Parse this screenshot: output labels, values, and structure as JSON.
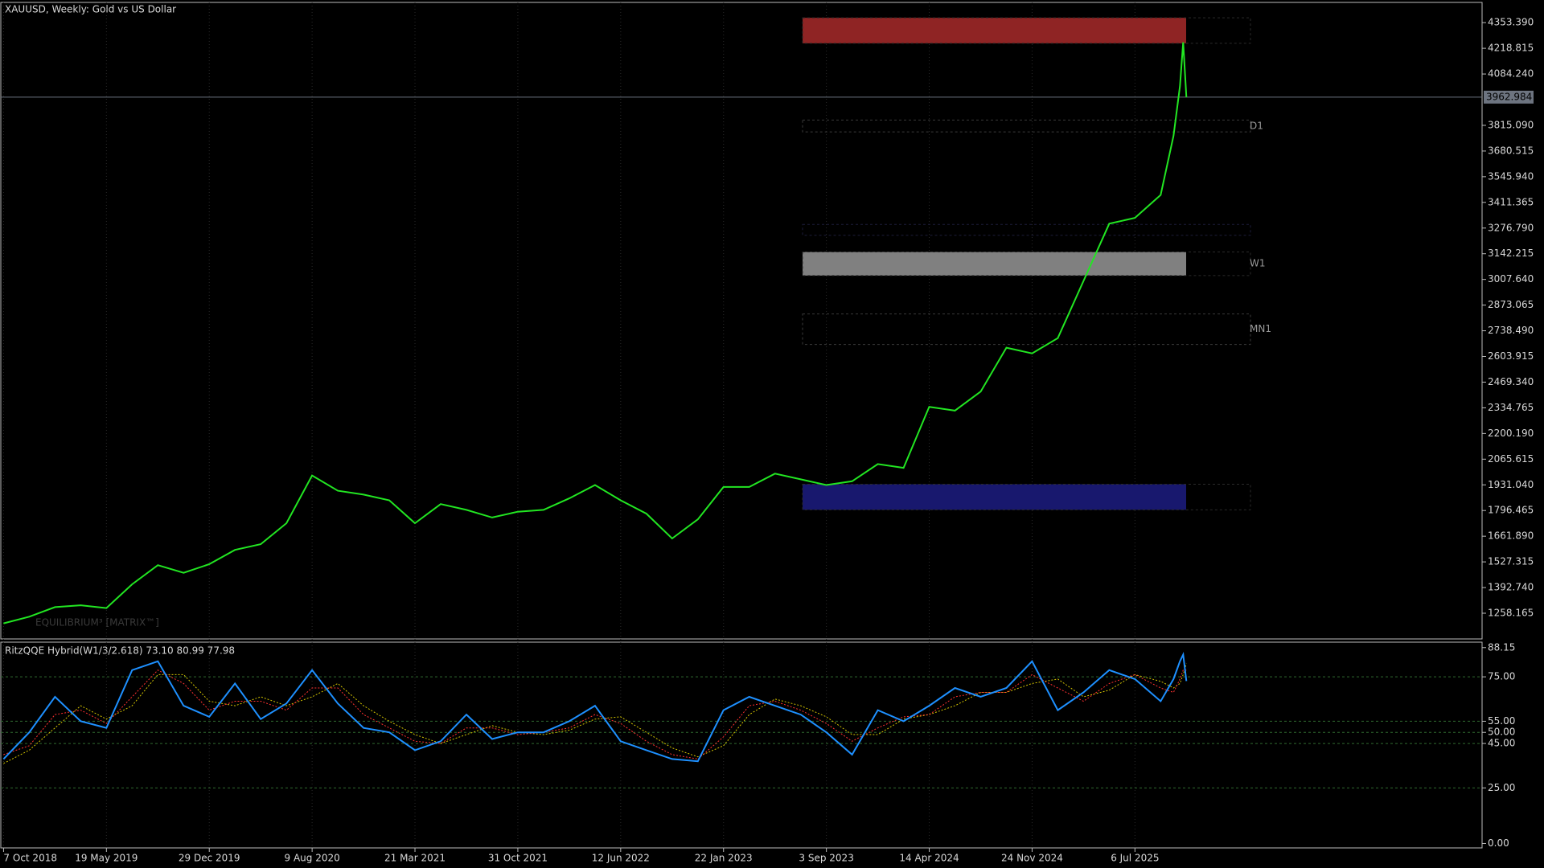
{
  "chart_data": [
    {
      "type": "line",
      "title": "XAUUSD, Weekly:  Gold vs US Dollar",
      "watermark": "EQUILIBRIUM³ [MATRIX™]",
      "x": [
        "2018-10-07",
        "2018-12-02",
        "2019-01-27",
        "2019-03-24",
        "2019-05-19",
        "2019-07-14",
        "2019-09-08",
        "2019-11-03",
        "2019-12-29",
        "2020-02-23",
        "2020-04-19",
        "2020-06-14",
        "2020-08-09",
        "2020-10-04",
        "2020-11-29",
        "2021-01-24",
        "2021-03-21",
        "2021-05-16",
        "2021-07-11",
        "2021-09-05",
        "2021-10-31",
        "2021-12-26",
        "2022-02-20",
        "2022-04-17",
        "2022-06-12",
        "2022-08-07",
        "2022-10-02",
        "2022-11-27",
        "2023-01-22",
        "2023-03-19",
        "2023-05-14",
        "2023-07-09",
        "2023-09-03",
        "2023-10-29",
        "2023-12-24",
        "2024-02-18",
        "2024-04-14",
        "2024-06-09",
        "2024-08-04",
        "2024-09-29",
        "2024-11-24",
        "2025-01-19",
        "2025-03-16",
        "2025-05-11",
        "2025-07-06",
        "2025-08-31",
        "2025-09-28",
        "2025-10-12",
        "2025-10-19",
        "2025-10-26"
      ],
      "values": [
        1205,
        1240,
        1290,
        1300,
        1285,
        1410,
        1510,
        1470,
        1515,
        1590,
        1620,
        1730,
        1980,
        1900,
        1880,
        1850,
        1730,
        1830,
        1800,
        1760,
        1790,
        1800,
        1860,
        1930,
        1850,
        1780,
        1650,
        1750,
        1920,
        1920,
        1990,
        1960,
        1930,
        1950,
        2040,
        2020,
        2340,
        2320,
        2420,
        2650,
        2620,
        2700,
        3000,
        3300,
        3330,
        3450,
        3760,
        4020,
        4250,
        3962.984
      ],
      "color": "#22e622",
      "current_price": 3962.984,
      "zones": [
        {
          "ylim": [
            4245,
            4379
          ],
          "color": "#8f2424",
          "fill": true
        },
        {
          "ylim": [
            3780.8,
            3842.7
          ],
          "color": "#3a3a3a",
          "fill": false,
          "label": "D1"
        },
        {
          "ylim": [
            3239,
            3296
          ],
          "color": "#1c1c3a",
          "fill": false
        },
        {
          "ylim": [
            3027.6,
            3151.6
          ],
          "color": "#808080",
          "fill": true,
          "label": "W1"
        },
        {
          "ylim": [
            2666.7,
            2826.6
          ],
          "color": "#3a3a3a",
          "fill": false,
          "label": "MN1"
        },
        {
          "ylim": [
            1800.2,
            1934.3
          ],
          "color": "#18186e",
          "fill": true
        }
      ],
      "xlim": [
        "2018-10-01",
        "2027-08-01"
      ],
      "xticks": [
        {
          "value": "2018-10-07",
          "label": "7 Oct 2018"
        },
        {
          "value": "2019-05-19",
          "label": "19 May 2019"
        },
        {
          "value": "2019-12-29",
          "label": "29 Dec 2019"
        },
        {
          "value": "2020-08-09",
          "label": "9 Aug 2020"
        },
        {
          "value": "2021-03-21",
          "label": "21 Mar 2021"
        },
        {
          "value": "2021-10-31",
          "label": "31 Oct 2021"
        },
        {
          "value": "2022-06-12",
          "label": "12 Jun 2022"
        },
        {
          "value": "2023-01-22",
          "label": "22 Jan 2023"
        },
        {
          "value": "2023-09-03",
          "label": "3 Sep 2023"
        },
        {
          "value": "2024-04-14",
          "label": "14 Apr 2024"
        },
        {
          "value": "2024-11-24",
          "label": "24 Nov 2024"
        },
        {
          "value": "2025-07-06",
          "label": "6 Jul 2025"
        }
      ],
      "ylim": [
        1123.4,
        4459.4
      ],
      "yticks": [
        {
          "value": 4353.39,
          "label": "4353.390"
        },
        {
          "value": 4218.815,
          "label": "4218.815"
        },
        {
          "value": 4084.24,
          "label": "4084.240"
        },
        {
          "value": 3815.09,
          "label": "3815.090"
        },
        {
          "value": 3680.515,
          "label": "3680.515"
        },
        {
          "value": 3545.94,
          "label": "3545.940"
        },
        3411.365,
        {
          "value": 3276.79,
          "label": "3276.790"
        },
        3142.215,
        {
          "value": 3007.64,
          "label": "3007.640"
        },
        2873.065,
        {
          "value": 2738.49,
          "label": "2738.490"
        },
        2603.915,
        {
          "value": 2469.34,
          "label": "2469.340"
        },
        2334.765,
        {
          "value": 2200.19,
          "label": "2200.190"
        },
        2065.615,
        {
          "value": 1931.04,
          "label": "1931.040"
        },
        1796.465,
        {
          "value": 1661.89,
          "label": "1661.890"
        },
        1527.315,
        {
          "value": 1392.74,
          "label": "1392.740"
        },
        1258.165
      ]
    },
    {
      "type": "line",
      "title": "RitzQQE Hybrid(W1/3/2.618) 73.10 80.99 77.98",
      "series": [
        {
          "color": "#d4c400",
          "dash": true,
          "values": [
            36,
            42,
            52,
            62,
            56,
            62,
            76,
            76,
            64,
            62,
            66,
            62,
            66,
            72,
            62,
            55,
            49,
            45,
            49,
            53,
            50,
            49,
            51,
            56,
            57,
            50,
            43,
            39,
            44,
            58,
            65,
            62,
            57,
            49,
            49,
            56,
            58,
            62,
            68,
            68,
            72,
            74,
            66,
            69,
            76,
            73,
            70,
            72,
            76,
            80.99
          ]
        },
        {
          "color": "#ff3030",
          "dash": true,
          "values": [
            40,
            44,
            58,
            60,
            54,
            66,
            78,
            72,
            60,
            64,
            64,
            60,
            70,
            70,
            58,
            52,
            46,
            45,
            52,
            52,
            49,
            50,
            52,
            58,
            54,
            46,
            40,
            38,
            48,
            62,
            64,
            60,
            54,
            46,
            52,
            57,
            58,
            66,
            68,
            68,
            76,
            70,
            64,
            72,
            76,
            70,
            68,
            74,
            78,
            77.98
          ]
        },
        {
          "color": "#1e90ff",
          "dash": false,
          "values": [
            38,
            50,
            66,
            55,
            52,
            78,
            82,
            62,
            57,
            72,
            56,
            63,
            78,
            63,
            52,
            50,
            42,
            46,
            58,
            47,
            50,
            50,
            55,
            62,
            46,
            42,
            38,
            37,
            60,
            66,
            62,
            58,
            50,
            40,
            60,
            55,
            62,
            70,
            66,
            70,
            82,
            60,
            68,
            78,
            74,
            64,
            74,
            82,
            85,
            73.1
          ]
        }
      ],
      "levels": [
        75,
        55,
        50,
        45,
        25
      ],
      "ylim": [
        -2,
        90.6
      ],
      "yticks": [
        88.15,
        {
          "value": 75,
          "label": "75.00"
        },
        {
          "value": 55,
          "label": "55.00"
        },
        {
          "value": 50,
          "label": "50.00"
        },
        {
          "value": 45,
          "label": "45.00"
        },
        {
          "value": 25,
          "label": "25.00"
        },
        {
          "value": 0,
          "label": "0.00"
        }
      ]
    }
  ]
}
